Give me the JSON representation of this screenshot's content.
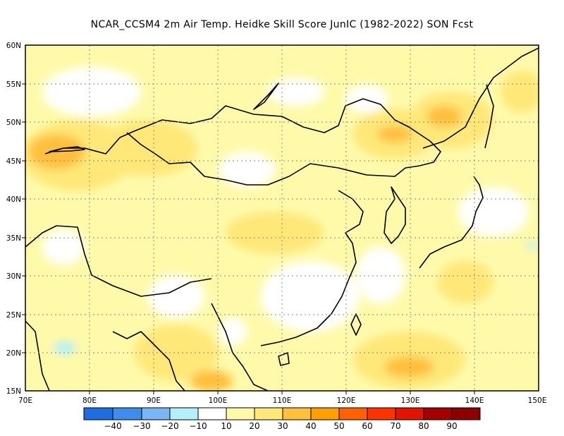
{
  "title": "NCAR_CCSM4  2m Air Temp. Heidke Skill Score JunIC (1982-2022) SON Fcst",
  "map": {
    "lon_range": [
      70,
      150
    ],
    "lat_range": [
      15,
      60
    ],
    "x_ticks": [
      "70E",
      "80E",
      "90E",
      "100E",
      "110E",
      "120E",
      "130E",
      "140E",
      "150E"
    ],
    "y_ticks": [
      "15N",
      "20N",
      "25N",
      "30N",
      "35N",
      "40N",
      "45N",
      "50N",
      "55N",
      "60N"
    ],
    "grid": true
  },
  "colorbar": {
    "labels": [
      "−40",
      "−30",
      "−20",
      "−10",
      "10",
      "20",
      "30",
      "40",
      "50",
      "60",
      "70",
      "80",
      "90"
    ],
    "colors": [
      "#1e6ee0",
      "#3d8eea",
      "#78b6f5",
      "#b4f0fa",
      "#ffffff",
      "#fffaaa",
      "#ffe878",
      "#ffc03c",
      "#ffa000",
      "#ff6000",
      "#ff3200",
      "#e11400",
      "#a50000"
    ]
  }
}
